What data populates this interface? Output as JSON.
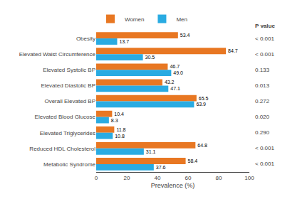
{
  "chart_data": {
    "type": "bar",
    "orientation": "horizontal",
    "categories": [
      "Obesity",
      "Elevated Waist Circumference",
      "Elevated Systolic BP",
      "Elevated Diastolic BP",
      "Overall Elevated BP",
      "Elevated Blood Glucose",
      "Elevated Triglycerides",
      "Reduced HDL Cholesterol",
      "Metabolic Syndrome"
    ],
    "series": [
      {
        "name": "Women",
        "color": "#E87722",
        "values": [
          53.4,
          84.7,
          46.7,
          43.2,
          65.5,
          10.4,
          11.8,
          64.8,
          58.4
        ],
        "value_labels": [
          "53.4",
          "84.7",
          "46.7",
          "43.2",
          "65.5",
          "10.4",
          "11.8",
          "64.8",
          "58.4"
        ]
      },
      {
        "name": "Men",
        "color": "#29ABE2",
        "values": [
          13.7,
          30.5,
          49.0,
          47.1,
          63.9,
          8.3,
          10.8,
          31.1,
          37.6
        ],
        "value_labels": [
          "13.7",
          "30.5",
          "49.0",
          "47.1",
          "63.9",
          "8.3",
          "10.8",
          "31.1",
          "37.6"
        ]
      }
    ],
    "xlabel": "Prevalence (%)",
    "xlim": [
      0,
      100
    ],
    "xticks": [
      0,
      20,
      40,
      60,
      80,
      100
    ],
    "data_labels": true,
    "annotations": {
      "title": "P value",
      "texts": [
        "< 0.001",
        "< 0.001",
        "0.133",
        "0.013",
        "0.272",
        "0.020",
        "0.290",
        "< 0.001",
        "< 0.001"
      ]
    },
    "legend": "top",
    "grid": false
  }
}
